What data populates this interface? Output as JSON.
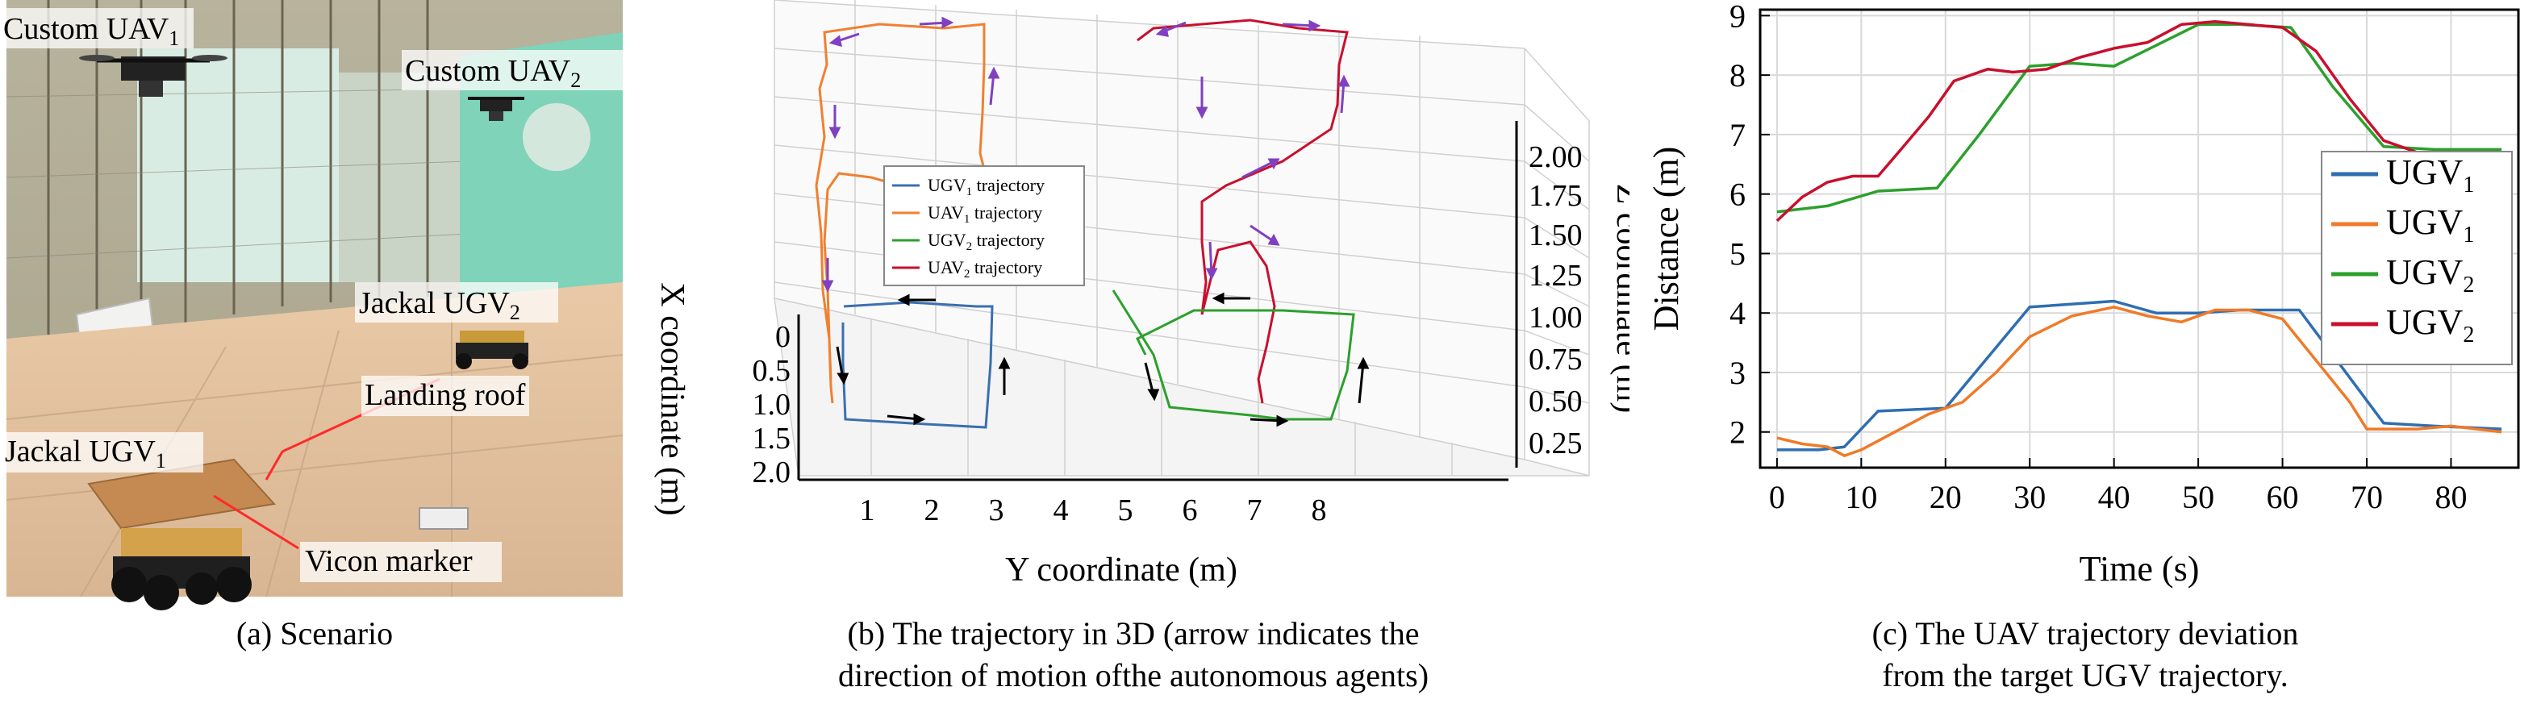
{
  "panel_a": {
    "caption": "(a) Scenario",
    "labels": {
      "uav1": "Custom UAV",
      "uav1_sub": "1",
      "uav2": "Custom UAV",
      "uav2_sub": "2",
      "ugv2": "Jackal UGV",
      "ugv2_sub": "2",
      "ugv1": "Jackal UGV",
      "ugv1_sub": "1",
      "landing_roof": "Landing roof",
      "vicon_marker": "Vicon marker"
    }
  },
  "panel_b": {
    "caption_line1": "(b) The trajectory in 3D (arrow indicates the",
    "caption_line2": "direction of motion ofthe autonomous agents)",
    "xlabel": "Y coordinate (m)",
    "ylabel": "X coordinate (m)",
    "zlabel": "Z coordinate (m)",
    "y_ticks": [
      "1",
      "2",
      "3",
      "4",
      "5",
      "6",
      "7",
      "8"
    ],
    "x_ticks": [
      "0",
      "0.5",
      "1.0",
      "1.5",
      "2.0"
    ],
    "z_ticks": [
      "2.00",
      "1.75",
      "1.50",
      "1.25",
      "1.00",
      "0.75",
      "0.50",
      "0.25"
    ],
    "legend": [
      {
        "label": "UGV",
        "sub": "1",
        "suffix": " trajectory",
        "color": "#3b6fb0"
      },
      {
        "label": "UAV",
        "sub": "1",
        "suffix": " trajectory",
        "color": "#f08030"
      },
      {
        "label": "UGV",
        "sub": "2",
        "suffix": " trajectory",
        "color": "#2ca02c"
      },
      {
        "label": "UAV",
        "sub": "2",
        "suffix": " trajectory",
        "color": "#c8102e"
      }
    ]
  },
  "panel_c": {
    "caption_line1": "(c) The UAV trajectory deviation",
    "caption_line2": "from the target UGV trajectory."
  },
  "chart_data": {
    "type": "line",
    "xlabel": "Time (s)",
    "ylabel": "Distance (m)",
    "xlim": [
      -2,
      88
    ],
    "ylim": [
      1.4,
      9.1
    ],
    "x_ticks": [
      0,
      10,
      20,
      30,
      40,
      50,
      60,
      70,
      80
    ],
    "y_ticks": [
      2,
      3,
      4,
      5,
      6,
      7,
      8,
      9
    ],
    "grid": true,
    "legend_position": "right",
    "series": [
      {
        "name": "UGV",
        "sub": "1",
        "color": "#2f6eb0",
        "x": [
          0,
          5,
          8,
          12,
          20,
          30,
          40,
          45,
          50,
          55,
          62,
          72,
          78,
          86
        ],
        "y": [
          1.7,
          1.7,
          1.75,
          2.35,
          2.4,
          4.1,
          4.2,
          4.0,
          4.0,
          4.05,
          4.05,
          2.15,
          2.1,
          2.05
        ]
      },
      {
        "name": "UGV",
        "sub": "1",
        "color": "#f07a28",
        "x": [
          0,
          3,
          6,
          8,
          10,
          14,
          18,
          22,
          26,
          30,
          35,
          40,
          44,
          48,
          52,
          56,
          60,
          64,
          68,
          70,
          72,
          76,
          80,
          86
        ],
        "y": [
          1.9,
          1.8,
          1.75,
          1.6,
          1.7,
          2.0,
          2.3,
          2.5,
          3.0,
          3.6,
          3.95,
          4.1,
          3.95,
          3.85,
          4.05,
          4.05,
          3.9,
          3.2,
          2.5,
          2.05,
          2.05,
          2.05,
          2.1,
          2.0
        ]
      },
      {
        "name": "UGV",
        "sub": "2",
        "color": "#2ca02c",
        "x": [
          0,
          6,
          12,
          19,
          24,
          30,
          35,
          40,
          45,
          50,
          55,
          61,
          66,
          72,
          78,
          86
        ],
        "y": [
          5.7,
          5.8,
          6.05,
          6.1,
          7.0,
          8.15,
          8.2,
          8.15,
          8.5,
          8.85,
          8.85,
          8.8,
          7.8,
          6.8,
          6.75,
          6.75
        ]
      },
      {
        "name": "UGV",
        "sub": "2",
        "color": "#c8102e",
        "x": [
          0,
          3,
          6,
          9,
          12,
          15,
          18,
          21,
          25,
          28,
          32,
          36,
          40,
          44,
          48,
          52,
          56,
          60,
          64,
          68,
          72,
          76,
          80,
          86
        ],
        "y": [
          5.55,
          5.95,
          6.2,
          6.3,
          6.3,
          6.8,
          7.3,
          7.9,
          8.1,
          8.05,
          8.1,
          8.3,
          8.45,
          8.55,
          8.85,
          8.9,
          8.85,
          8.8,
          8.4,
          7.6,
          6.9,
          6.7,
          6.65,
          6.65
        ]
      }
    ]
  }
}
